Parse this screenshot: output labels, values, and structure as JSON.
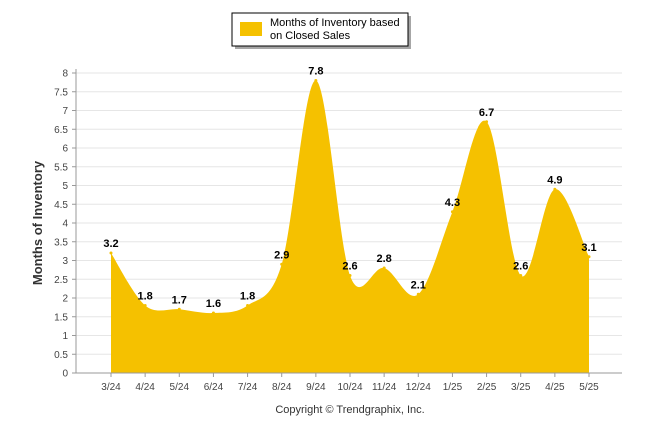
{
  "chart_data": {
    "type": "area",
    "categories": [
      "3/24",
      "4/24",
      "5/24",
      "6/24",
      "7/24",
      "8/24",
      "9/24",
      "10/24",
      "11/24",
      "12/24",
      "1/25",
      "2/25",
      "3/25",
      "4/25",
      "5/25"
    ],
    "series": [
      {
        "name": "Months of Inventory based on Closed Sales",
        "values": [
          3.2,
          1.8,
          1.7,
          1.6,
          1.8,
          2.9,
          7.8,
          2.6,
          2.8,
          2.1,
          4.3,
          6.7,
          2.6,
          4.9,
          3.1
        ],
        "color": "#F5C100"
      }
    ],
    "data_labels": [
      "3.2",
      "1.8",
      "1.7",
      "1.6",
      "1.8",
      "2.9",
      "7.8",
      "2.6",
      "2.8",
      "2.1",
      "4.3",
      "6.7",
      "2.6",
      "4.9",
      "3.1"
    ],
    "ylabel": "Months of Inventory",
    "xlabel": "",
    "ylim": [
      0,
      8
    ],
    "yticks": [
      "0",
      "0.5",
      "1",
      "1.5",
      "2",
      "2.5",
      "3",
      "3.5",
      "4",
      "4.5",
      "5",
      "5.5",
      "6",
      "6.5",
      "7",
      "7.5",
      "8"
    ],
    "grid": true,
    "legend_position": "top-center",
    "legend_lines": [
      "Months of Inventory based",
      "on Closed Sales"
    ],
    "copyright": "Copyright © Trendgraphix, Inc."
  }
}
